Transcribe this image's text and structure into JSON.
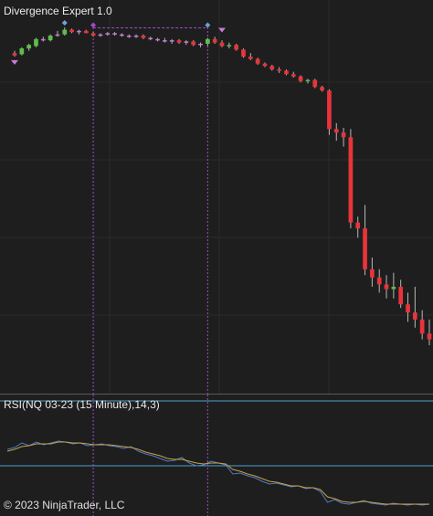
{
  "price_panel": {
    "indicator_label": "Divergence Expert 1.0"
  },
  "rsi_panel": {
    "label": "RSI(NQ 03-23 (15 Minute),14,3)"
  },
  "footer": {
    "copyright": "© 2023 NinjaTrader, LLC"
  },
  "colors": {
    "background": "#1e1e1e",
    "grid": "#2b2b2b",
    "up_candle": "#5cbf4a",
    "down_candle": "#e8343a",
    "doji_candle": "#c77bd4",
    "wick": "#b8b8b8",
    "divergence": "#a14bc9",
    "rsi_line": "#4a7ec9",
    "rsi_signal": "#c9a04a",
    "rsi_band": "#4aa3c9"
  },
  "chart_data": [
    {
      "type": "candlestick",
      "title": "Divergence Expert 1.0",
      "series": [
        {
          "values": [
            [
              50,
              52,
              47,
              48
            ],
            [
              49,
              55,
              48,
              54
            ],
            [
              54,
              58,
              52,
              57
            ],
            [
              56,
              63,
              55,
              62
            ],
            [
              62,
              64,
              60,
              61
            ],
            [
              61,
              66,
              60,
              65
            ],
            [
              65,
              69,
              64,
              66
            ],
            [
              66,
              72,
              65,
              70
            ],
            [
              70,
              71,
              67,
              68
            ],
            [
              68,
              70,
              66,
              69
            ],
            [
              69,
              70,
              67,
              67
            ],
            [
              67,
              68,
              64,
              65
            ],
            [
              65,
              67,
              64,
              66
            ],
            [
              66,
              68,
              65,
              67
            ],
            [
              67,
              68,
              65,
              66
            ],
            [
              66,
              67,
              64,
              65
            ],
            [
              65,
              66,
              63,
              64
            ],
            [
              64,
              66,
              63,
              65
            ],
            [
              65,
              66,
              62,
              63
            ],
            [
              63,
              64,
              61,
              62
            ],
            [
              62,
              63,
              60,
              61
            ],
            [
              61,
              63,
              59,
              60
            ],
            [
              60,
              62,
              58,
              61
            ],
            [
              61,
              62,
              58,
              59
            ],
            [
              59,
              61,
              57,
              60
            ],
            [
              60,
              61,
              56,
              57
            ],
            [
              57,
              59,
              55,
              58
            ],
            [
              58,
              63,
              56,
              62
            ],
            [
              62,
              64,
              58,
              59
            ],
            [
              59,
              61,
              55,
              56
            ],
            [
              56,
              59,
              54,
              57
            ],
            [
              57,
              58,
              52,
              53
            ],
            [
              53,
              54,
              46,
              47
            ],
            [
              47,
              50,
              44,
              45
            ],
            [
              45,
              46,
              40,
              41
            ],
            [
              41,
              42,
              38,
              39
            ],
            [
              39,
              40,
              35,
              36
            ],
            [
              36,
              38,
              33,
              35
            ],
            [
              35,
              36,
              31,
              32
            ],
            [
              32,
              34,
              29,
              30
            ],
            [
              30,
              31,
              25,
              26
            ],
            [
              26,
              28,
              24,
              27
            ],
            [
              27,
              28,
              20,
              21
            ],
            [
              21,
              22,
              17,
              18
            ],
            [
              18,
              19,
              -20,
              -15
            ],
            [
              -15,
              -10,
              -25,
              -18
            ],
            [
              -18,
              -14,
              -30,
              -22
            ],
            [
              -22,
              -15,
              -100,
              -95
            ],
            [
              -95,
              -90,
              -108,
              -100
            ],
            [
              -100,
              -80,
              -140,
              -135
            ],
            [
              -135,
              -125,
              -150,
              -142
            ],
            [
              -142,
              -135,
              -155,
              -148
            ],
            [
              -148,
              -140,
              -160,
              -152
            ],
            [
              -152,
              -138,
              -160,
              -150
            ],
            [
              -150,
              -144,
              -168,
              -165
            ],
            [
              -165,
              -155,
              -180,
              -172
            ],
            [
              -172,
              -150,
              -185,
              -178
            ],
            [
              -178,
              -170,
              -195,
              -190
            ],
            [
              -190,
              -178,
              -200,
              -195
            ]
          ]
        }
      ],
      "annotations": [
        "divergence-high-1",
        "divergence-high-2",
        "sell-arrow",
        "down-arrow-left"
      ]
    },
    {
      "type": "line",
      "title": "RSI(NQ 03-23 (15 Minute),14,3)",
      "series": [
        {
          "values": [
            62,
            64,
            69,
            66,
            70,
            67,
            69,
            71,
            70,
            68,
            69,
            66,
            67,
            68,
            66,
            65,
            63,
            65,
            60,
            57,
            55,
            52,
            49,
            50,
            53,
            47,
            44,
            45,
            49,
            47,
            45,
            35,
            36,
            33,
            31,
            27,
            24,
            25,
            23,
            21,
            22,
            19,
            20,
            16,
            4,
            7,
            3,
            2,
            4,
            6,
            3,
            2,
            1,
            3,
            2,
            1,
            2,
            1,
            2
          ]
        },
        {
          "values": [
            60,
            62,
            65,
            66,
            68,
            68,
            68,
            70,
            70,
            69,
            69,
            68,
            67,
            67,
            67,
            66,
            65,
            64,
            62,
            59,
            57,
            55,
            52,
            51,
            51,
            49,
            47,
            46,
            47,
            47,
            46,
            40,
            38,
            35,
            33,
            30,
            27,
            26,
            24,
            22,
            22,
            20,
            20,
            18,
            10,
            8,
            5,
            4,
            4,
            5,
            4,
            3,
            2,
            2,
            2,
            2,
            2,
            2,
            2
          ]
        }
      ],
      "ylim": [
        0,
        100
      ]
    }
  ]
}
